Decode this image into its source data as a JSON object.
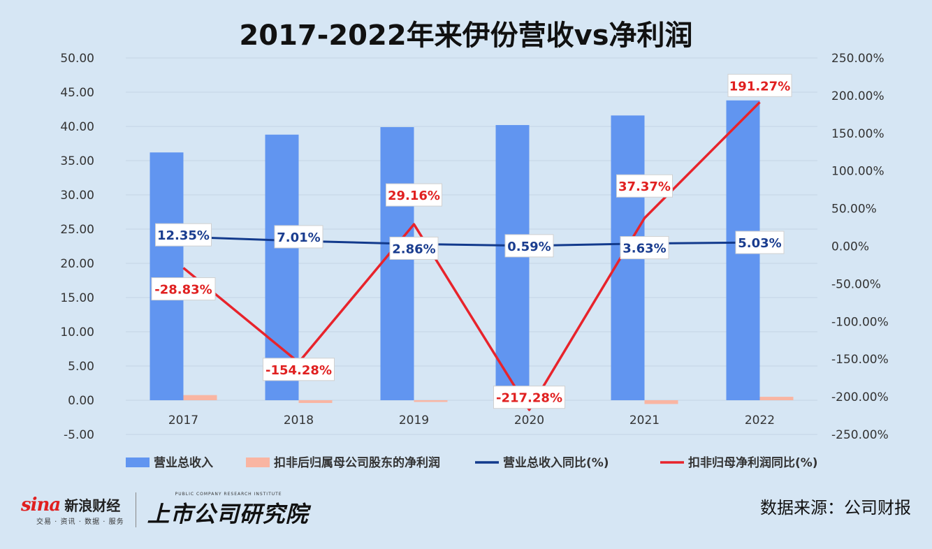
{
  "title": "2017-2022年来伊份营收vs净利润",
  "source": "数据来源：公司财报",
  "logos": {
    "sina_word": "sina",
    "sina_cn": "新浪财经",
    "sina_sub": "交易 · 资讯 · 数据 · 服务",
    "research_sub": "PUBLIC COMPANY RESEARCH INSTITUTE",
    "research_main": "上市公司研究院"
  },
  "chart_data": {
    "type": "bar",
    "categories": [
      "2017",
      "2018",
      "2019",
      "2020",
      "2021",
      "2022"
    ],
    "y_left": {
      "min": -5,
      "max": 50,
      "step": 5,
      "ticks": [
        "50.00",
        "45.00",
        "40.00",
        "35.00",
        "30.00",
        "25.00",
        "20.00",
        "15.00",
        "10.00",
        "5.00",
        "0.00",
        "-5.00"
      ]
    },
    "y_right": {
      "min": -250,
      "max": 250,
      "step": 50,
      "ticks": [
        "250.00%",
        "200.00%",
        "150.00%",
        "100.00%",
        "50.00%",
        "0.00%",
        "-50.00%",
        "-100.00%",
        "-150.00%",
        "-200.00%",
        "-250.00%"
      ]
    },
    "series": [
      {
        "name": "营业总收入",
        "kind": "bar",
        "axis": "left",
        "color": "#6195f0",
        "values": [
          36.2,
          38.8,
          39.9,
          40.2,
          41.6,
          43.8
        ]
      },
      {
        "name": "扣非后归属母公司股东的净利润",
        "kind": "bar",
        "axis": "left",
        "color": "#f9b5a2",
        "values": [
          0.75,
          -0.4,
          -0.25,
          -0.8,
          -0.55,
          0.5
        ]
      },
      {
        "name": "营业总收入同比(%)",
        "kind": "line",
        "axis": "right",
        "color": "#123a8c",
        "values": [
          12.35,
          7.01,
          2.86,
          0.59,
          3.63,
          5.03
        ],
        "labels": [
          "12.35%",
          "7.01%",
          "2.86%",
          "0.59%",
          "3.63%",
          "5.03%"
        ]
      },
      {
        "name": "扣非归母净利润同比(%)",
        "kind": "line",
        "axis": "right",
        "color": "#e8232b",
        "values": [
          -28.83,
          -154.28,
          29.16,
          -217.28,
          37.37,
          191.27
        ],
        "labels": [
          "-28.83%",
          "-154.28%",
          "29.16%",
          "-217.28%",
          "37.37%",
          "191.27%"
        ]
      }
    ],
    "legend_position": "bottom",
    "grid": true
  }
}
